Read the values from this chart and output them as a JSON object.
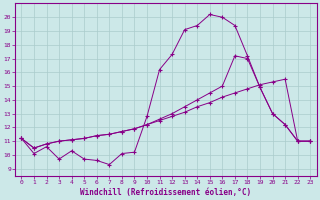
{
  "xlabel": "Windchill (Refroidissement éolien,°C)",
  "xlim": [
    -0.5,
    23.5
  ],
  "ylim": [
    8.5,
    21.0
  ],
  "xticks": [
    0,
    1,
    2,
    3,
    4,
    5,
    6,
    7,
    8,
    9,
    10,
    11,
    12,
    13,
    14,
    15,
    16,
    17,
    18,
    19,
    20,
    21,
    22,
    23
  ],
  "yticks": [
    9,
    10,
    11,
    12,
    13,
    14,
    15,
    16,
    17,
    18,
    19,
    20
  ],
  "background_color": "#cce8e8",
  "grid_color": "#aacccc",
  "line_color": "#880088",
  "line1_x": [
    0,
    1,
    2,
    3,
    4,
    5,
    6,
    7,
    8,
    9,
    10,
    11,
    12,
    13,
    14,
    15,
    16,
    17,
    18,
    19,
    20,
    21,
    22,
    23
  ],
  "line1_y": [
    11.2,
    10.1,
    10.6,
    9.7,
    10.3,
    9.7,
    9.6,
    9.3,
    10.1,
    10.2,
    12.8,
    16.2,
    17.3,
    19.1,
    19.4,
    20.2,
    20.0,
    19.4,
    17.2,
    14.9,
    13.0,
    12.2,
    11.0,
    11.0
  ],
  "line2_x": [
    0,
    1,
    2,
    3,
    4,
    5,
    6,
    7,
    8,
    9,
    10,
    11,
    12,
    13,
    14,
    15,
    16,
    17,
    18,
    19,
    20,
    21,
    22,
    23
  ],
  "line2_y": [
    11.2,
    10.5,
    10.8,
    11.0,
    11.1,
    11.2,
    11.4,
    11.5,
    11.7,
    11.9,
    12.2,
    12.6,
    13.0,
    13.5,
    14.0,
    14.5,
    15.0,
    17.2,
    17.0,
    14.9,
    13.0,
    12.2,
    11.0,
    11.0
  ],
  "line3_x": [
    0,
    1,
    2,
    3,
    4,
    5,
    6,
    7,
    8,
    9,
    10,
    11,
    12,
    13,
    14,
    15,
    16,
    17,
    18,
    19,
    20,
    21,
    22,
    23
  ],
  "line3_y": [
    11.2,
    10.5,
    10.8,
    11.0,
    11.1,
    11.2,
    11.4,
    11.5,
    11.7,
    11.9,
    12.2,
    12.5,
    12.8,
    13.1,
    13.5,
    13.8,
    14.2,
    14.5,
    14.8,
    15.1,
    15.3,
    15.5,
    11.0,
    11.0
  ]
}
